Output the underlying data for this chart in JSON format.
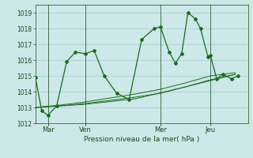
{
  "bg_color": "#cce8e8",
  "grid_color": "#aacccc",
  "line_color": "#1a6b1a",
  "text_color": "#1a4a1a",
  "xlabel_text": "Pression niveau de la mer( hPa )",
  "ylim": [
    1012,
    1019.5
  ],
  "yticks": [
    1012,
    1013,
    1014,
    1015,
    1016,
    1017,
    1018,
    1019
  ],
  "xtick_labels": [
    "Mar",
    "Ven",
    "Mer",
    "Jeu"
  ],
  "xtick_positions": [
    1,
    4,
    10,
    14
  ],
  "vline_positions": [
    1,
    4,
    10,
    14
  ],
  "xlim": [
    0,
    17
  ],
  "series1_x": [
    0,
    0.5,
    1.0,
    1.7,
    2.5,
    3.2,
    4.0,
    4.7,
    5.5,
    6.5,
    7.5,
    8.5,
    9.5,
    10.0,
    10.7,
    11.2,
    11.7,
    12.2,
    12.8,
    13.2,
    13.8,
    14.0,
    14.5,
    15.0,
    15.7,
    16.2
  ],
  "series1_y": [
    1014.9,
    1012.8,
    1012.5,
    1013.1,
    1015.9,
    1016.5,
    1016.4,
    1016.6,
    1015.0,
    1013.9,
    1013.5,
    1017.3,
    1018.0,
    1018.1,
    1016.5,
    1015.8,
    1016.4,
    1019.0,
    1018.6,
    1018.0,
    1016.2,
    1016.3,
    1014.8,
    1015.1,
    1014.8,
    1015.0
  ],
  "series2_x": [
    0,
    2,
    4,
    6,
    8,
    10,
    12,
    14,
    16
  ],
  "series2_y": [
    1013.0,
    1013.1,
    1013.25,
    1013.45,
    1013.65,
    1013.9,
    1014.3,
    1014.75,
    1015.1
  ],
  "series3_x": [
    0,
    2,
    4,
    6,
    8,
    10,
    12,
    14,
    16
  ],
  "series3_y": [
    1013.0,
    1013.15,
    1013.35,
    1013.6,
    1013.85,
    1014.15,
    1014.55,
    1015.0,
    1015.2
  ],
  "series4_x": [
    0,
    4,
    8,
    12,
    16
  ],
  "series4_y": [
    1013.0,
    1013.2,
    1013.55,
    1014.3,
    1015.1
  ]
}
